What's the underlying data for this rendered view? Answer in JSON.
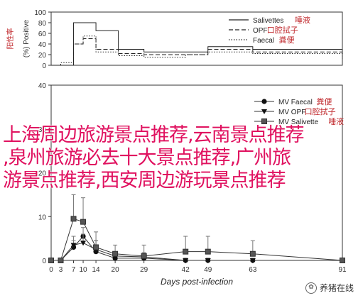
{
  "chart_data": [
    {
      "type": "line",
      "title": "",
      "ylabel_prefix": "(%)",
      "ylabel_main": "Positive",
      "ylabel_cn": "阳性率",
      "y_ticks": [
        0,
        20,
        40,
        60,
        80,
        100
      ],
      "ylim": [
        0,
        100
      ],
      "xlim": [
        0,
        91
      ],
      "step": true,
      "series": [
        {
          "name": "Salivettes",
          "name_cn": "唾液",
          "style": "solid",
          "x": [
            0,
            7,
            10,
            14,
            21,
            29,
            42,
            49,
            63,
            91
          ],
          "y": [
            0,
            80,
            80,
            65,
            30,
            25,
            25,
            35,
            30,
            20
          ]
        },
        {
          "name": "OPF",
          "name_cn": "口腔拭子",
          "style": "dashed",
          "x": [
            0,
            3,
            7,
            10,
            14,
            21,
            29,
            42,
            49,
            63,
            91
          ],
          "y": [
            0,
            0,
            40,
            50,
            30,
            22,
            20,
            20,
            30,
            25,
            15
          ]
        },
        {
          "name": "Faecal",
          "name_cn": "粪便",
          "style": "dotted",
          "x": [
            0,
            3,
            7,
            10,
            14,
            21,
            29,
            42,
            49,
            63,
            91
          ],
          "y": [
            0,
            5,
            40,
            55,
            25,
            18,
            15,
            20,
            25,
            22,
            10
          ]
        }
      ]
    },
    {
      "type": "line",
      "title": "",
      "ylabel": "",
      "xlabel": "Days post-infection",
      "y_ticks": [
        0,
        10,
        20,
        30,
        40
      ],
      "ylim": [
        0,
        40
      ],
      "x_ticks": [
        0,
        3,
        7,
        10,
        14,
        20,
        29,
        42,
        49,
        63,
        91
      ],
      "xlim": [
        0,
        91
      ],
      "series": [
        {
          "name": "MV Faecal",
          "name_cn": "粪便",
          "marker": "circle",
          "x": [
            0,
            3,
            7,
            10,
            14,
            20,
            29,
            42,
            49,
            63,
            91
          ],
          "y": [
            0,
            0,
            3,
            5.5,
            2,
            0.5,
            0.5,
            0,
            0,
            0,
            0
          ],
          "err": [
            0,
            0,
            1.5,
            2,
            2.5,
            1,
            1,
            0.5,
            0.5,
            0.5,
            0
          ]
        },
        {
          "name": "MV OPF",
          "name_cn": "口腔拭子",
          "marker": "triangle",
          "x": [
            0,
            3,
            7,
            10,
            14,
            20,
            29,
            42,
            49,
            63,
            91
          ],
          "y": [
            0,
            0,
            3.5,
            4,
            2.5,
            1,
            0.8,
            0,
            0,
            0,
            0
          ],
          "err": [
            0,
            0,
            2,
            2,
            2,
            1,
            1,
            0.5,
            0.5,
            0.5,
            0
          ]
        },
        {
          "name": "MV Salivette",
          "name_cn": "唾液",
          "marker": "square",
          "x": [
            0,
            3,
            7,
            10,
            14,
            20,
            29,
            42,
            49,
            63,
            91
          ],
          "y": [
            0,
            0,
            9.5,
            8.8,
            3,
            1.5,
            1,
            2,
            2,
            1.5,
            0
          ],
          "err": [
            0,
            0,
            5.5,
            5.5,
            3.5,
            2,
            2.5,
            3.5,
            3.5,
            3,
            0
          ]
        }
      ]
    }
  ],
  "overlay": {
    "line1": "上海周边旅游景点推荐,云南景点推荐",
    "line2": ",泉州旅游必去十大景点推荐,广州旅",
    "line3": "游景点推荐,西安周边游玩景点推荐"
  },
  "watermark": "养猪在线"
}
